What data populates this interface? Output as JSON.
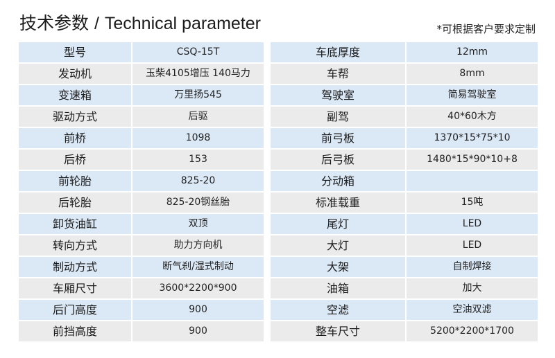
{
  "header": {
    "title_cn": "技术参数",
    "separator": "/",
    "title_en": "Technical parameter",
    "note": "*可根据客户要求定制"
  },
  "colors": {
    "row_blue": "#dbe8f6",
    "row_gray": "#ebebeb"
  },
  "left_table": [
    {
      "label": "型号",
      "value": "CSQ-15T"
    },
    {
      "label": "发动机",
      "value": "玉柴4105增压  140马力"
    },
    {
      "label": "变速箱",
      "value": "万里扬545"
    },
    {
      "label": "驱动方式",
      "value": "后驱"
    },
    {
      "label": "前桥",
      "value": "1098"
    },
    {
      "label": "后桥",
      "value": "153"
    },
    {
      "label": "前轮胎",
      "value": "825-20"
    },
    {
      "label": "后轮胎",
      "value": "825-20钢丝胎"
    },
    {
      "label": "卸货油缸",
      "value": "双顶"
    },
    {
      "label": "转向方式",
      "value": "助力方向机"
    },
    {
      "label": "制动方式",
      "value": "断气刹/湿式制动"
    },
    {
      "label": "车厢尺寸",
      "value": "3600*2200*900"
    },
    {
      "label": "后门高度",
      "value": "900"
    },
    {
      "label": "前挡高度",
      "value": "900"
    }
  ],
  "right_table": [
    {
      "label": "车底厚度",
      "value": "12mm"
    },
    {
      "label": "车帮",
      "value": "8mm"
    },
    {
      "label": "驾驶室",
      "value": "简易驾驶室"
    },
    {
      "label": "副驾",
      "value": "40*60木方"
    },
    {
      "label": "前弓板",
      "value": "1370*15*75*10"
    },
    {
      "label": "后弓板",
      "value": "1480*15*90*10+8"
    },
    {
      "label": "分动箱",
      "value": ""
    },
    {
      "label": "标准载重",
      "value": "15吨"
    },
    {
      "label": "尾灯",
      "value": "LED"
    },
    {
      "label": "大灯",
      "value": "LED"
    },
    {
      "label": "大架",
      "value": "自制焊接"
    },
    {
      "label": "油箱",
      "value": "加大"
    },
    {
      "label": "空滤",
      "value": "空油双滤"
    },
    {
      "label": "整车尺寸",
      "value": "5200*2200*1700"
    }
  ]
}
